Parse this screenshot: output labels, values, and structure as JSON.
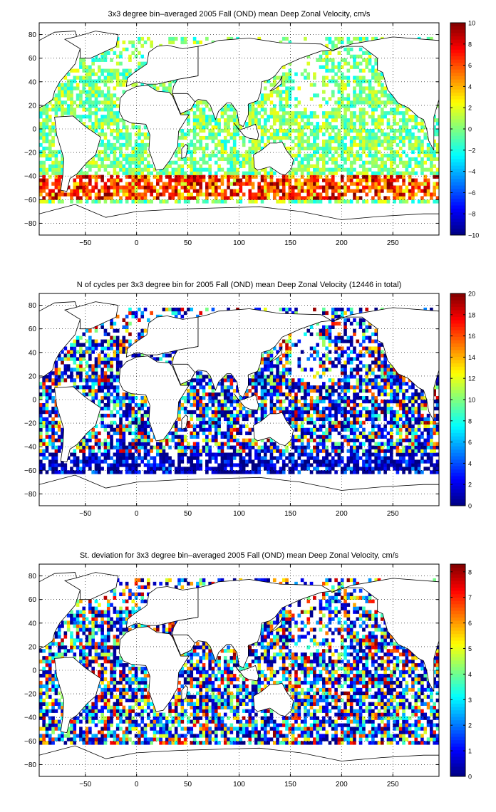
{
  "figure": {
    "panels": [
      {
        "title": "3x3 degree bin–averaged 2005 Fall (OND) mean Deep Zonal Velocity, cm/s"
      },
      {
        "title": "N of cycles per 3x3 degree bin for 2005 Fall (OND) mean Deep Zonal Velocity (12446 in total)"
      },
      {
        "title": "St. deviation for 3x3 degree bin–averaged 2005 Fall (OND) mean Deep Zonal Velocity, cm/s"
      }
    ]
  },
  "chart_data": [
    {
      "type": "heatmap",
      "title": "3x3 degree bin–averaged 2005 Fall (OND) mean Deep Zonal Velocity, cm/s",
      "xlabel": "",
      "ylabel": "",
      "xlim": [
        -95,
        295
      ],
      "ylim": [
        -90,
        90
      ],
      "xticks": [
        -50,
        0,
        50,
        100,
        150,
        200,
        250
      ],
      "yticks": [
        -80,
        -60,
        -40,
        -20,
        0,
        20,
        40,
        60,
        80
      ],
      "grid": true,
      "colormap": "jet",
      "colorbar": {
        "range": [
          -10,
          10
        ],
        "ticks": [
          -10,
          -8,
          -6,
          -4,
          -2,
          0,
          2,
          4,
          6,
          8,
          10
        ]
      },
      "bin_size_deg": 3,
      "seed": 7
    },
    {
      "type": "heatmap",
      "title": "N of cycles per 3x3 degree bin for 2005 Fall (OND) mean Deep Zonal Velocity (12446 in total)",
      "xlabel": "",
      "ylabel": "",
      "xlim": [
        -95,
        295
      ],
      "ylim": [
        -90,
        90
      ],
      "xticks": [
        -50,
        0,
        50,
        100,
        150,
        200,
        250
      ],
      "yticks": [
        -80,
        -60,
        -40,
        -20,
        0,
        20,
        40,
        60,
        80
      ],
      "grid": true,
      "colormap": "jet",
      "colorbar": {
        "range": [
          0,
          20
        ],
        "ticks": [
          0,
          2,
          4,
          6,
          8,
          10,
          12,
          14,
          16,
          18,
          20
        ]
      },
      "bin_size_deg": 3,
      "seed": 19
    },
    {
      "type": "heatmap",
      "title": "St. deviation for 3x3 degree bin–averaged 2005 Fall (OND) mean Deep Zonal Velocity, cm/s",
      "xlabel": "",
      "ylabel": "",
      "xlim": [
        -95,
        295
      ],
      "ylim": [
        -90,
        90
      ],
      "xticks": [
        -50,
        0,
        50,
        100,
        150,
        200,
        250
      ],
      "yticks": [
        -80,
        -60,
        -40,
        -20,
        0,
        20,
        40,
        60,
        80
      ],
      "grid": true,
      "colormap": "jet",
      "colorbar": {
        "range": [
          0,
          8.3
        ],
        "ticks": [
          0,
          1,
          2,
          3,
          4,
          5,
          6,
          7,
          8
        ]
      },
      "bin_size_deg": 3,
      "seed": 31
    }
  ]
}
